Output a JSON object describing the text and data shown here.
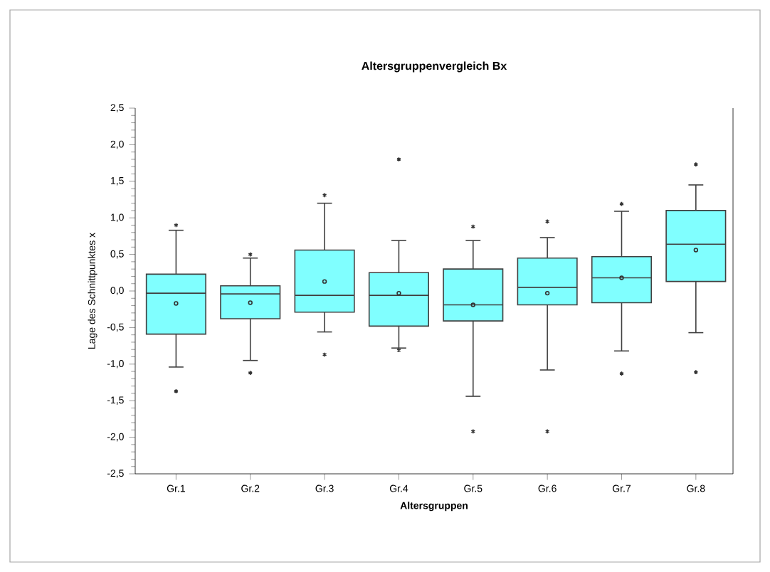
{
  "chart_data": {
    "type": "box",
    "title": "Altersgruppenvergleich Bx",
    "xlabel": "Altersgruppen",
    "ylabel": "Lage des Schnittpunktes x",
    "categories": [
      "Gr.1",
      "Gr.2",
      "Gr.3",
      "Gr.4",
      "Gr.5",
      "Gr.6",
      "Gr.7",
      "Gr.8"
    ],
    "color": "#80ffff",
    "boxes": [
      {
        "low": -1.04,
        "q1": -0.59,
        "median": -0.03,
        "q3": 0.23,
        "high": 0.83,
        "mean": -0.17,
        "outliers": [
          0.9,
          -1.37
        ]
      },
      {
        "low": -0.95,
        "q1": -0.38,
        "median": -0.04,
        "q3": 0.07,
        "high": 0.45,
        "mean": -0.16,
        "outliers": [
          0.5,
          -1.12
        ]
      },
      {
        "low": -0.56,
        "q1": -0.29,
        "median": -0.06,
        "q3": 0.56,
        "high": 1.2,
        "mean": 0.13,
        "outliers": [
          1.31,
          -0.87
        ]
      },
      {
        "low": -0.78,
        "q1": -0.48,
        "median": -0.06,
        "q3": 0.25,
        "high": 0.69,
        "mean": -0.03,
        "outliers": [
          1.8,
          -0.81
        ]
      },
      {
        "low": -1.44,
        "q1": -0.41,
        "median": -0.19,
        "q3": 0.3,
        "high": 0.69,
        "mean": -0.19,
        "outliers": [
          0.88,
          -1.92
        ]
      },
      {
        "low": -1.08,
        "q1": -0.19,
        "median": 0.05,
        "q3": 0.45,
        "high": 0.73,
        "mean": -0.03,
        "outliers": [
          0.95,
          -1.92
        ]
      },
      {
        "low": -0.82,
        "q1": -0.16,
        "median": 0.18,
        "q3": 0.47,
        "high": 1.09,
        "mean": 0.18,
        "outliers": [
          1.19,
          -1.13
        ]
      },
      {
        "low": -0.57,
        "q1": 0.13,
        "median": 0.64,
        "q3": 1.1,
        "high": 1.45,
        "mean": 0.56,
        "outliers": [
          1.73,
          -1.11
        ]
      }
    ],
    "ylim": [
      -2.5,
      2.5
    ],
    "yticks": [
      {
        "value": -2.5,
        "label": "-2,5"
      },
      {
        "value": -2.0,
        "label": "-2,0"
      },
      {
        "value": -1.5,
        "label": "-1,5"
      },
      {
        "value": -1.0,
        "label": "-1,0"
      },
      {
        "value": -0.5,
        "label": "-0,5"
      },
      {
        "value": 0.0,
        "label": "0,0"
      },
      {
        "value": 0.5,
        "label": "0,5"
      },
      {
        "value": 1.0,
        "label": "1,0"
      },
      {
        "value": 1.5,
        "label": "1,5"
      },
      {
        "value": 2.0,
        "label": "2,0"
      },
      {
        "value": 2.5,
        "label": "2,5"
      }
    ]
  }
}
